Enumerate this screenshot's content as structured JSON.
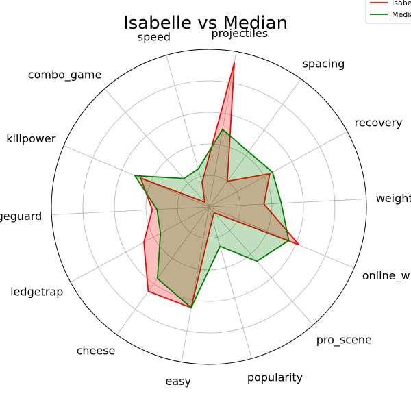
{
  "chart_data": {
    "type": "radar",
    "title": "Isabelle vs Median",
    "categories": [
      "projectiles",
      "spacing",
      "recovery",
      "weight",
      "online_winrate",
      "pro_scene",
      "popularity",
      "easy",
      "cheese",
      "ledgetrap",
      "edgeguard",
      "killpower",
      "combo_game",
      "speed"
    ],
    "rmax": 1.0,
    "grid_levels": [
      0.2,
      0.4,
      0.6,
      0.8,
      1.0
    ],
    "grid": true,
    "legend_placement": "top-right",
    "series": [
      {
        "name": "Isabelle",
        "color": "#ff0000",
        "fill": "#ff0000",
        "values": [
          0.93,
          0.2,
          0.44,
          0.35,
          0.62,
          0.05,
          0.08,
          0.65,
          0.66,
          0.47,
          0.36,
          0.47,
          0.04,
          0.16
        ]
      },
      {
        "name": "Median",
        "color": "#008000",
        "fill": "#008000",
        "values": [
          0.5,
          0.43,
          0.46,
          0.46,
          0.55,
          0.46,
          0.26,
          0.65,
          0.56,
          0.35,
          0.33,
          0.51,
          0.24,
          0.25
        ]
      }
    ]
  }
}
